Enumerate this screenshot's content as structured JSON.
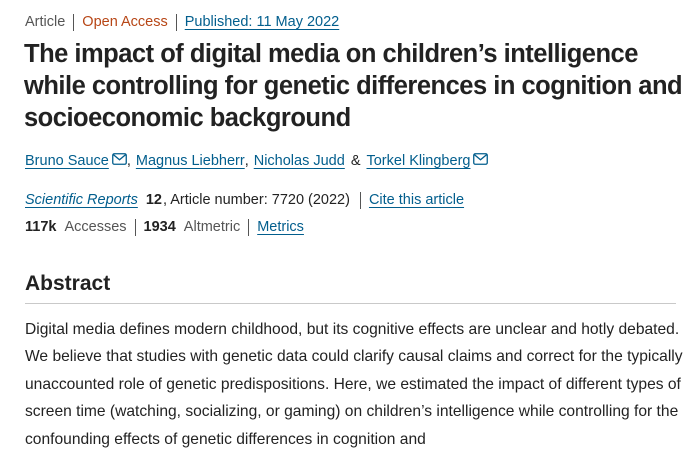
{
  "article_meta": {
    "type": "Article",
    "access": "Open Access",
    "published": "Published: 11 May 2022"
  },
  "title": "The impact of digital media on children’s intelligence while controlling for genetic differences in cognition and socioeconomic background",
  "authors": [
    {
      "name": "Bruno Sauce",
      "has_email": true
    },
    {
      "name": "Magnus Liebherr",
      "has_email": false
    },
    {
      "name": "Nicholas Judd",
      "has_email": false
    },
    {
      "name": "Torkel Klingberg",
      "has_email": true
    }
  ],
  "author_separators": {
    "comma": ",",
    "and": "&"
  },
  "citation": {
    "journal": "Scientific Reports",
    "volume": "12",
    "article_number": ", Article number: 7720",
    "year": "(2022)",
    "cite_link": "Cite this article"
  },
  "metrics": {
    "accesses_value": "117k",
    "accesses_label": "Accesses",
    "altmetric_value": "1934",
    "altmetric_label": "Altmetric",
    "metrics_link": "Metrics"
  },
  "abstract": {
    "heading": "Abstract",
    "text": "Digital media defines modern childhood, but its cognitive effects are unclear and hotly debated. We believe that studies with genetic data could clarify causal claims and correct for the typically unaccounted role of genetic predispositions. Here, we estimated the impact of different types of screen time (watching, socializing, or gaming) on children’s intelligence while controlling for the confounding effects of genetic differences in cognition and"
  },
  "colors": {
    "link": "#025e8d",
    "open_access": "#b74616",
    "text": "#222222"
  },
  "icons": {
    "email": "mail-icon"
  }
}
